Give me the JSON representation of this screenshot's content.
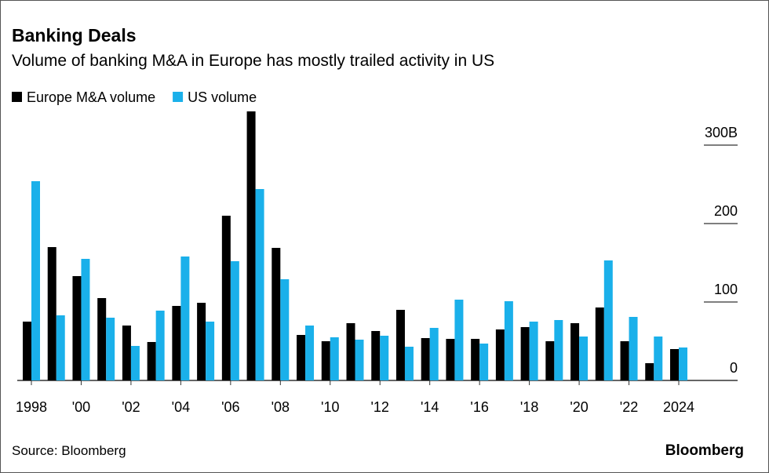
{
  "chart_data": {
    "type": "bar",
    "title": "Banking Deals",
    "subtitle": "Volume of banking M&A in Europe has mostly trailed activity in US",
    "source": "Source: Bloomberg",
    "logo": "Bloomberg",
    "categories": [
      "1998",
      null,
      "'00",
      null,
      "'02",
      null,
      "'04",
      null,
      "'06",
      null,
      "'08",
      null,
      "'10",
      null,
      "'12",
      null,
      "'14",
      null,
      "'16",
      null,
      "'18",
      null,
      "'20",
      null,
      "'22",
      null,
      "2024"
    ],
    "series": [
      {
        "name": "Europe M&A volume",
        "color": "#000000",
        "values": [
          75,
          170,
          133,
          105,
          70,
          49,
          95,
          99,
          210,
          343,
          169,
          58,
          50,
          73,
          63,
          90,
          54,
          53,
          53,
          65,
          68,
          50,
          73,
          93,
          50,
          22,
          40
        ]
      },
      {
        "name": "US volume",
        "color": "#1ab0ea",
        "values": [
          254,
          83,
          155,
          80,
          44,
          89,
          158,
          75,
          152,
          244,
          129,
          70,
          55,
          52,
          57,
          43,
          67,
          103,
          47,
          101,
          75,
          77,
          56,
          153,
          81,
          56,
          42
        ]
      }
    ],
    "ylim": [
      0,
      345
    ],
    "yticks": [
      0,
      100,
      200,
      {
        "value": 300,
        "label": "300B"
      }
    ],
    "legend": "top-left"
  }
}
